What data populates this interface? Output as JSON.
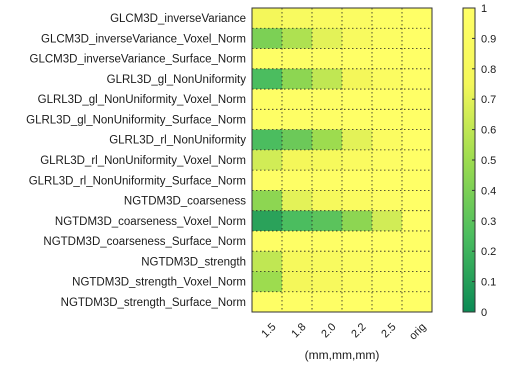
{
  "chart_data": {
    "type": "heatmap",
    "title": "",
    "xlabel": "(mm,mm,mm)",
    "ylabel": "",
    "x_categories": [
      "1.5",
      "1.8",
      "2.0",
      "2.2",
      "2.5",
      "orig"
    ],
    "y_categories": [
      "GLCM3D_inverseVariance",
      "GLCM3D_inverseVariance_Voxel_Norm",
      "GLCM3D_inverseVariance_Surface_Norm",
      "GLRL3D_gl_NonUniformity",
      "GLRL3D_gl_NonUniformity_Voxel_Norm",
      "GLRL3D_gl_NonUniformity_Surface_Norm",
      "GLRL3D_rl_NonUniformity",
      "GLRL3D_rl_NonUniformity_Voxel_Norm",
      "GLRL3D_rl_NonUniformity_Surface_Norm",
      "NGTDM3D_coarseness",
      "NGTDM3D_coarseness_Voxel_Norm",
      "NGTDM3D_coarseness_Surface_Norm",
      "NGTDM3D_strength",
      "NGTDM3D_strength_Voxel_Norm",
      "NGTDM3D_strength_Surface_Norm"
    ],
    "values": [
      [
        0.75,
        0.85,
        0.88,
        0.92,
        0.96,
        1.0
      ],
      [
        0.4,
        0.55,
        0.7,
        0.85,
        0.94,
        1.0
      ],
      [
        0.97,
        0.98,
        0.98,
        0.99,
        0.99,
        1.0
      ],
      [
        0.25,
        0.45,
        0.6,
        0.75,
        0.9,
        1.0
      ],
      [
        0.97,
        0.98,
        0.98,
        0.99,
        0.99,
        1.0
      ],
      [
        0.97,
        0.98,
        0.98,
        0.99,
        0.99,
        1.0
      ],
      [
        0.25,
        0.35,
        0.5,
        0.7,
        0.9,
        1.0
      ],
      [
        0.65,
        0.75,
        0.8,
        0.88,
        0.95,
        1.0
      ],
      [
        0.97,
        0.98,
        0.98,
        0.99,
        0.99,
        1.0
      ],
      [
        0.45,
        0.7,
        0.8,
        0.88,
        0.95,
        1.0
      ],
      [
        0.12,
        0.25,
        0.3,
        0.45,
        0.65,
        1.0
      ],
      [
        0.97,
        0.98,
        0.98,
        0.99,
        0.99,
        1.0
      ],
      [
        0.6,
        0.8,
        0.85,
        0.92,
        0.96,
        1.0
      ],
      [
        0.5,
        0.75,
        0.82,
        0.9,
        0.96,
        1.0
      ],
      [
        0.97,
        0.98,
        0.98,
        0.99,
        0.99,
        1.0
      ]
    ],
    "zlim": [
      0,
      1
    ],
    "colorbar_ticks": [
      "0",
      "0.1",
      "0.2",
      "0.3",
      "0.4",
      "0.5",
      "0.6",
      "0.7",
      "0.8",
      "0.9",
      "1"
    ],
    "colormap": [
      "#0b8a55",
      "#4bbd5f",
      "#9ddc4f",
      "#f4f75a",
      "#ffff66"
    ],
    "grid": true,
    "colorbar": "right"
  }
}
